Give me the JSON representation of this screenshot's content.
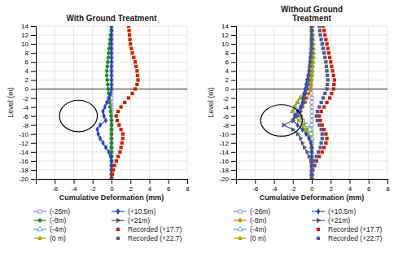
{
  "chart_data": [
    {
      "type": "line",
      "title": "With Ground Treatment",
      "xlabel": "Cumulative Deformation (mm)",
      "ylabel": "Level (m)",
      "xlim": [
        -8,
        8
      ],
      "ylim": [
        -20,
        14
      ],
      "xticks": [
        -6,
        -4,
        -2,
        0,
        2,
        4,
        6,
        8
      ],
      "yticks": [
        14,
        12,
        10,
        8,
        6,
        4,
        2,
        0,
        -2,
        -4,
        -6,
        -8,
        -10,
        -12,
        -14,
        -16,
        -18,
        -20
      ],
      "grid": true,
      "hline": 0,
      "vline": 0,
      "circle": {
        "x": -3.5,
        "y": -6.0,
        "rx": 2.0,
        "ry": 3.5
      },
      "y": [
        14,
        13,
        12,
        11,
        10,
        9,
        8,
        7,
        6,
        5,
        4,
        3,
        2,
        1,
        0,
        -1,
        -2,
        -3,
        -4,
        -5,
        -6,
        -7,
        -8,
        -9,
        -10,
        -11,
        -12,
        -13,
        -14,
        -15,
        -16,
        -17,
        -18,
        -19,
        -20
      ],
      "series": [
        {
          "name": "(-26m)",
          "type": "line",
          "color": "#8888bb",
          "marker": "square-open",
          "values": [
            0.0,
            0.0,
            0.0,
            0.0,
            0.0,
            0.0,
            0.0,
            0.0,
            0.0,
            0.0,
            0.0,
            0.0,
            0.0,
            0.0,
            0.0,
            0.0,
            0.0,
            0.0,
            0.0,
            0.0,
            0.0,
            0.0,
            0.0,
            0.0,
            0.0,
            0.0,
            0.0,
            0.0,
            0.0,
            0.0,
            0.0,
            0.0,
            0.0,
            0.0,
            0.0
          ]
        },
        {
          "name": "(-8m)",
          "type": "line",
          "color": "#228822",
          "marker": "circle",
          "values": [
            0.0,
            0.0,
            -0.1,
            -0.15,
            -0.2,
            -0.25,
            -0.3,
            -0.35,
            -0.4,
            -0.45,
            -0.5,
            -0.5,
            -0.45,
            -0.4,
            -0.35,
            -0.3,
            -0.25,
            -0.2,
            -0.15,
            -0.1,
            -0.05,
            0.0,
            0.0,
            0.0,
            0.0,
            0.0,
            0.0,
            0.0,
            0.0,
            0.0,
            0.0,
            0.0,
            0.0,
            0.0,
            0.0
          ]
        },
        {
          "name": "(-4m)",
          "type": "line",
          "color": "#44aaaa",
          "marker": "triangle-open",
          "values": [
            null,
            null,
            null,
            null,
            null,
            null,
            null,
            null,
            null,
            null,
            null,
            null,
            null,
            null,
            null,
            null,
            null,
            null,
            null,
            null,
            null,
            null,
            null,
            null,
            null,
            null,
            null,
            null,
            null,
            null,
            null,
            null,
            null,
            null,
            null
          ]
        },
        {
          "name": "(0 m)",
          "type": "line",
          "color": "#aaaa00",
          "marker": "square",
          "values": [
            null,
            null,
            null,
            null,
            null,
            null,
            null,
            null,
            null,
            null,
            null,
            null,
            null,
            null,
            null,
            null,
            null,
            null,
            null,
            null,
            null,
            null,
            null,
            null,
            null,
            null,
            null,
            null,
            null,
            null,
            null,
            null,
            null,
            null,
            null
          ]
        },
        {
          "name": "(+10.5m)",
          "type": "line",
          "color": "#2244cc",
          "marker": "diamond",
          "values": [
            0.0,
            0.0,
            0.0,
            0.0,
            0.0,
            0.0,
            0.0,
            0.0,
            0.0,
            0.0,
            0.0,
            0.0,
            0.0,
            0.0,
            0.0,
            -0.1,
            -0.3,
            -0.5,
            -0.7,
            -0.9,
            -0.8,
            -0.6,
            -1.2,
            -1.5,
            -1.4,
            -1.2,
            -0.9,
            -0.6,
            -0.3,
            -0.1,
            0.0,
            0.0,
            0.0,
            0.0,
            0.0
          ]
        },
        {
          "name": "(+21m)",
          "type": "line",
          "color": "#555588",
          "marker": "triangle-right",
          "values": [
            null,
            null,
            null,
            null,
            null,
            null,
            null,
            null,
            null,
            null,
            null,
            null,
            null,
            null,
            null,
            null,
            null,
            null,
            null,
            null,
            null,
            null,
            null,
            null,
            null,
            null,
            null,
            null,
            null,
            null,
            null,
            null,
            null,
            null,
            null
          ]
        },
        {
          "name": "Recorded (+17.7)",
          "type": "scatter",
          "color": "#cc2200",
          "marker": "square",
          "values": [
            1.8,
            1.85,
            1.9,
            1.95,
            2.0,
            2.1,
            2.2,
            2.35,
            2.5,
            2.6,
            2.7,
            2.75,
            2.8,
            2.7,
            2.5,
            2.2,
            1.8,
            1.4,
            1.0,
            0.7,
            0.5,
            0.6,
            0.8,
            1.0,
            1.2,
            1.2,
            1.1,
            1.0,
            0.9,
            0.7,
            0.5,
            0.3,
            0.2,
            0.1,
            0.0
          ]
        },
        {
          "name": "Recorded (+22.7)",
          "type": "scatter",
          "color": "#555599",
          "marker": "square",
          "values": [
            null,
            null,
            null,
            null,
            null,
            null,
            null,
            null,
            null,
            null,
            null,
            null,
            null,
            null,
            null,
            null,
            null,
            null,
            null,
            null,
            null,
            null,
            null,
            null,
            null,
            null,
            null,
            null,
            null,
            null,
            null,
            null,
            null,
            null,
            null
          ]
        }
      ]
    },
    {
      "type": "line",
      "title": "Without Ground\nTreatment",
      "xlabel": "Cumulative Deformation (mm)",
      "ylabel": "Level (m)",
      "xlim": [
        -8,
        8
      ],
      "ylim": [
        -20,
        14
      ],
      "xticks": [
        -6,
        -4,
        -2,
        0,
        2,
        4,
        6,
        8
      ],
      "yticks": [
        14,
        12,
        10,
        8,
        6,
        4,
        2,
        0,
        -2,
        -4,
        -6,
        -8,
        -10,
        -12,
        -14,
        -16,
        -18,
        -20
      ],
      "grid": true,
      "hline": 0,
      "vline": 0,
      "circle": {
        "x": -3.2,
        "y": -7.0,
        "rx": 2.2,
        "ry": 3.5
      },
      "y": [
        14,
        13,
        12,
        11,
        10,
        9,
        8,
        7,
        6,
        5,
        4,
        3,
        2,
        1,
        0,
        -1,
        -2,
        -3,
        -4,
        -5,
        -6,
        -7,
        -8,
        -9,
        -10,
        -11,
        -12,
        -13,
        -14,
        -15,
        -16,
        -17,
        -18,
        -19,
        -20
      ],
      "series": [
        {
          "name": "(-26m)",
          "type": "line",
          "color": "#8888bb",
          "marker": "square-open",
          "values": [
            0.0,
            0.0,
            0.0,
            -0.05,
            -0.05,
            -0.08,
            -0.1,
            -0.12,
            -0.15,
            -0.18,
            -0.2,
            -0.2,
            -0.18,
            -0.15,
            -0.1,
            -0.05,
            0.0,
            0.0,
            0.0,
            0.0,
            0.0,
            0.0,
            0.0,
            0.0,
            0.0,
            0.0,
            0.0,
            0.0,
            0.0,
            0.0,
            0.0,
            0.0,
            0.0,
            0.0,
            0.0
          ]
        },
        {
          "name": "(-8m)",
          "type": "line",
          "color": "#cc8800",
          "marker": "circle",
          "values": [
            0.0,
            0.0,
            0.05,
            0.08,
            0.1,
            0.12,
            0.15,
            0.15,
            0.12,
            0.1,
            0.08,
            0.05,
            0.0,
            -0.05,
            -0.1,
            -0.3,
            -0.5,
            -0.7,
            -1.0,
            -1.2,
            -1.1,
            -0.9,
            -0.7,
            -0.5,
            -0.3,
            -0.1,
            0.0,
            0.0,
            0.0,
            0.0,
            0.0,
            0.0,
            0.0,
            0.0,
            0.0
          ]
        },
        {
          "name": "(-4m)",
          "type": "line",
          "color": "#44aaaa",
          "marker": "triangle-open",
          "values": [
            0.0,
            0.0,
            0.05,
            0.08,
            0.1,
            0.12,
            0.15,
            0.12,
            0.1,
            0.05,
            0.0,
            -0.05,
            -0.1,
            -0.3,
            -0.5,
            -0.8,
            -1.2,
            -1.5,
            -1.8,
            -2.0,
            -1.5,
            -1.0,
            -0.5,
            -0.2,
            -0.1,
            0.0,
            0.0,
            0.0,
            0.0,
            0.0,
            0.0,
            0.0,
            0.0,
            0.0,
            0.0
          ]
        },
        {
          "name": "(0 m)",
          "type": "line",
          "color": "#aaaa00",
          "marker": "square",
          "values": [
            0.0,
            0.0,
            0.05,
            0.08,
            0.1,
            0.12,
            0.15,
            0.12,
            0.1,
            0.05,
            0.0,
            -0.05,
            -0.1,
            -0.3,
            -0.5,
            -0.8,
            -1.2,
            -1.5,
            -1.8,
            -2.0,
            -1.8,
            -1.4,
            -1.0,
            -0.7,
            -0.4,
            -0.2,
            -0.1,
            0.0,
            0.0,
            0.0,
            0.0,
            0.0,
            0.0,
            0.0,
            0.0
          ]
        },
        {
          "name": "(+10.5m)",
          "type": "line",
          "color": "#2244cc",
          "marker": "diamond",
          "values": [
            0.0,
            0.0,
            0.0,
            0.0,
            0.0,
            -0.05,
            -0.1,
            -0.15,
            -0.2,
            -0.25,
            -0.3,
            -0.4,
            -0.5,
            -0.6,
            -0.7,
            -0.8,
            -0.9,
            -1.0,
            -1.2,
            -1.5,
            -1.8,
            -2.0,
            -1.5,
            -1.0,
            -0.6,
            -0.3,
            -0.1,
            0.0,
            0.0,
            0.0,
            0.0,
            0.0,
            0.0,
            0.0,
            0.0
          ]
        },
        {
          "name": "(+21m)",
          "type": "line",
          "color": "#555588",
          "marker": "triangle-right",
          "values": [
            0.0,
            0.0,
            0.0,
            0.0,
            0.0,
            0.0,
            -0.05,
            -0.1,
            -0.15,
            -0.2,
            -0.25,
            -0.3,
            -0.35,
            -0.4,
            -0.5,
            -0.6,
            -0.7,
            -0.8,
            -1.0,
            -1.2,
            -1.5,
            -2.0,
            -3.0,
            -2.0,
            -1.5,
            -1.2,
            -1.0,
            -0.8,
            -0.5,
            -0.3,
            -0.1,
            0.0,
            0.0,
            0.0,
            0.0
          ]
        },
        {
          "name": "Recorded (+17.7)",
          "type": "scatter",
          "color": "#cc2200",
          "marker": "square",
          "values": [
            1.2,
            1.3,
            1.4,
            1.5,
            1.6,
            1.7,
            1.8,
            1.9,
            2.0,
            2.1,
            2.2,
            2.3,
            2.4,
            2.35,
            2.3,
            2.1,
            1.9,
            1.6,
            1.3,
            1.0,
            0.8,
            0.9,
            1.1,
            1.3,
            1.5,
            1.6,
            1.5,
            1.3,
            1.1,
            0.8,
            0.5,
            0.3,
            0.1,
            0.0,
            0.0
          ]
        },
        {
          "name": "Recorded (+22.7)",
          "type": "scatter",
          "color": "#555599",
          "marker": "square",
          "values": [
            0.8,
            0.85,
            0.9,
            1.0,
            1.1,
            1.2,
            1.3,
            1.4,
            1.5,
            1.55,
            1.6,
            1.65,
            1.7,
            1.65,
            1.6,
            1.4,
            1.2,
            1.0,
            0.8,
            0.6,
            0.5,
            0.6,
            0.8,
            1.0,
            1.1,
            1.1,
            1.0,
            0.9,
            0.7,
            0.5,
            0.3,
            0.2,
            0.1,
            0.0,
            0.0
          ]
        }
      ]
    }
  ]
}
